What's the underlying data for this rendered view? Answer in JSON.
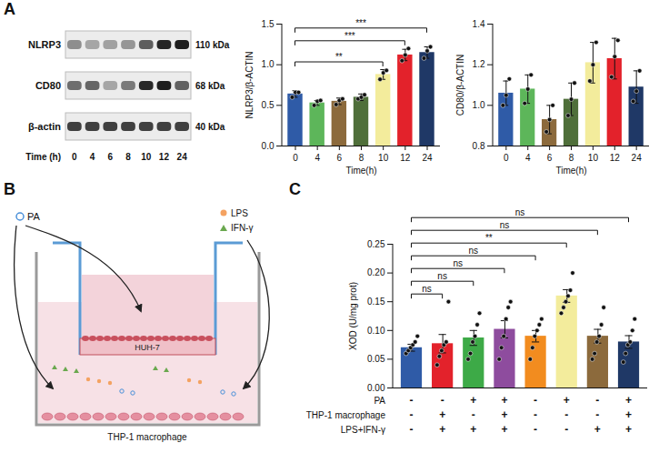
{
  "panels": [
    "A",
    "B",
    "C"
  ],
  "blot": {
    "bands": [
      {
        "label": "NLRP3",
        "size": "110 kDa"
      },
      {
        "label": "CD80",
        "size": "68 kDa"
      },
      {
        "label": "β-actin",
        "size": "40 kDa"
      }
    ],
    "lane_title": "Time (h)",
    "lanes": [
      "0",
      "4",
      "6",
      "8",
      "10",
      "12",
      "24"
    ]
  },
  "diagram": {
    "pa": "PA",
    "lps": "LPS",
    "ifn": "IFN-γ",
    "upper": "HUH-7",
    "lower": "THP-1 macrophage"
  },
  "chart_data": [
    {
      "type": "bar",
      "ylabel": "NLRP3/β-ACTIN",
      "xlabel": "Time(h)",
      "categories": [
        "0",
        "4",
        "6",
        "8",
        "10",
        "12",
        "24"
      ],
      "values": [
        0.64,
        0.53,
        0.55,
        0.6,
        0.88,
        1.12,
        1.15
      ],
      "errors": [
        0.04,
        0.03,
        0.04,
        0.04,
        0.06,
        0.07,
        0.07
      ],
      "points": [
        [
          0.6,
          0.66,
          0.66
        ],
        [
          0.5,
          0.55,
          0.56
        ],
        [
          0.51,
          0.56,
          0.58
        ],
        [
          0.58,
          0.6,
          0.63
        ],
        [
          0.82,
          0.9,
          0.93
        ],
        [
          1.05,
          1.12,
          1.2
        ],
        [
          1.08,
          1.17,
          1.22
        ]
      ],
      "colors": [
        "#2F5BA7",
        "#5DB65A",
        "#8C6A3C",
        "#4F6F3A",
        "#F3EC9C",
        "#E3222B",
        "#1F3866"
      ],
      "ylim": [
        0,
        1.5
      ],
      "yticks": [
        {
          "value": 0,
          "label": "0.0"
        },
        0.5,
        {
          "value": 1,
          "label": "1.0"
        },
        1.5
      ],
      "comparisons": [
        {
          "from": 0,
          "to": 4,
          "label": "**"
        },
        {
          "from": 0,
          "to": 5,
          "label": "***"
        },
        {
          "from": 0,
          "to": 6,
          "label": "***"
        }
      ]
    },
    {
      "type": "bar",
      "ylabel": "CD80/β-ACTIN",
      "xlabel": "Time(h)",
      "categories": [
        "0",
        "4",
        "6",
        "8",
        "10",
        "12",
        "24"
      ],
      "values": [
        1.06,
        1.08,
        0.93,
        1.03,
        1.21,
        1.23,
        1.09
      ],
      "errors": [
        0.06,
        0.07,
        0.07,
        0.08,
        0.1,
        0.1,
        0.08
      ],
      "points": [
        [
          1.0,
          1.05,
          1.13
        ],
        [
          1.01,
          1.08,
          1.15
        ],
        [
          0.87,
          0.93,
          1.0
        ],
        [
          0.95,
          1.03,
          1.11
        ],
        [
          1.12,
          1.2,
          1.31
        ],
        [
          1.14,
          1.24,
          1.32
        ],
        [
          1.02,
          1.07,
          1.17
        ]
      ],
      "colors": [
        "#2F5BA7",
        "#5DB65A",
        "#8C6A3C",
        "#4F6F3A",
        "#F3EC9C",
        "#E3222B",
        "#1F3866"
      ],
      "ylim": [
        0.8,
        1.4
      ],
      "yticks": [
        0.8,
        {
          "value": 1,
          "label": "1.0"
        },
        1.2,
        1.4
      ]
    },
    {
      "type": "bar",
      "ylabel": "XOD (U/mg prot)",
      "tick_labels": "y",
      "categories": [
        null,
        null,
        null,
        null,
        null,
        null,
        null,
        null
      ],
      "values": [
        0.07,
        0.077,
        0.087,
        0.102,
        0.09,
        0.16,
        0.09,
        0.08
      ],
      "errors": [
        0.006,
        0.016,
        0.013,
        0.015,
        0.01,
        0.011,
        0.012,
        0.011
      ],
      "points": [
        [
          0.06,
          0.065,
          0.07,
          0.075,
          0.08,
          0.09
        ],
        [
          0.04,
          0.055,
          0.065,
          0.075,
          0.08,
          0.15
        ],
        [
          0.05,
          0.06,
          0.08,
          0.09,
          0.11,
          0.13
        ],
        [
          0.05,
          0.07,
          0.09,
          0.12,
          0.14,
          0.15
        ],
        [
          0.05,
          0.07,
          0.09,
          0.1,
          0.11,
          0.12
        ],
        [
          0.13,
          0.14,
          0.15,
          0.16,
          0.17,
          0.2
        ],
        [
          0.05,
          0.06,
          0.08,
          0.09,
          0.11,
          0.14
        ],
        [
          0.045,
          0.06,
          0.075,
          0.08,
          0.1,
          0.12
        ]
      ],
      "colors": [
        "#2F5BA7",
        "#E3222B",
        "#3DAA47",
        "#8E4C9E",
        "#F28C1F",
        "#F3EC9C",
        "#8C6A3C",
        "#1F3866"
      ],
      "ylim": [
        0,
        0.25
      ],
      "yticks": [
        {
          "value": 0,
          "label": "0.00"
        },
        {
          "value": 0.05,
          "label": "0.05"
        },
        {
          "value": 0.1,
          "label": "0.10"
        },
        {
          "value": 0.15,
          "label": "0.15"
        },
        {
          "value": 0.2,
          "label": "0.20"
        },
        {
          "value": 0.25,
          "label": "0.25"
        }
      ],
      "comparisons": [
        {
          "from": 0,
          "to": 1,
          "label": "ns"
        },
        {
          "from": 0,
          "to": 2,
          "label": "ns"
        },
        {
          "from": 0,
          "to": 3,
          "label": "ns"
        },
        {
          "from": 0,
          "to": 4,
          "label": "ns"
        },
        {
          "from": 0,
          "to": 5,
          "label": "**"
        },
        {
          "from": 0,
          "to": 6,
          "label": "ns"
        },
        {
          "from": 0,
          "to": 7,
          "label": "ns"
        }
      ],
      "conditions": [
        {
          "label": "PA",
          "marks": [
            "-",
            "-",
            "+",
            "+",
            "-",
            "+",
            "-",
            "+"
          ]
        },
        {
          "label": "THP-1 macrophage",
          "marks": [
            "-",
            "+",
            "-",
            "+",
            "-",
            "-",
            "-",
            "+"
          ]
        },
        {
          "label": "LPS+IFN-γ",
          "marks": [
            "-",
            "+",
            "+",
            "+",
            "-",
            "-",
            "+",
            "+"
          ]
        }
      ]
    }
  ]
}
